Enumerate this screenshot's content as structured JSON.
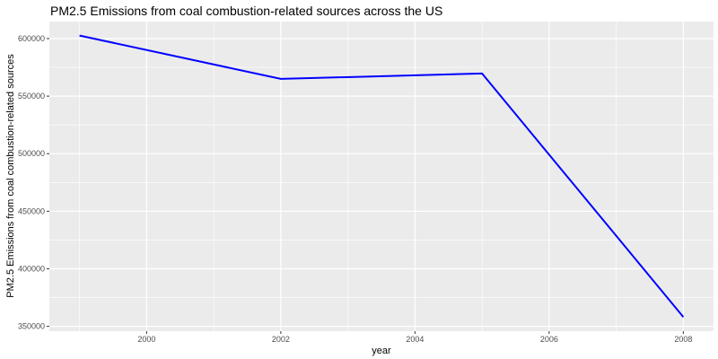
{
  "chart_data": {
    "type": "line",
    "title": "PM2.5 Emissions from coal combustion-related sources across the US",
    "xlabel": "year",
    "ylabel": "PM2.5 Emissions from coal combustion-related sources",
    "x": [
      1999,
      2002,
      2005,
      2008
    ],
    "series": [
      {
        "values": [
          602624,
          564940,
          569654,
          358084
        ]
      }
    ],
    "xticks": [
      2000,
      2002,
      2004,
      2006,
      2008
    ],
    "xtick_labels": [
      "2000",
      "2002",
      "2004",
      "2006",
      "2008"
    ],
    "yticks": [
      350000,
      400000,
      450000,
      500000,
      550000,
      600000
    ],
    "ytick_labels": [
      "350000",
      "400000",
      "450000",
      "500000",
      "550000",
      "600000"
    ],
    "xlim": [
      1998.55,
      2008.45
    ],
    "ylim": [
      345800,
      614800
    ],
    "grid": true,
    "line_color": "#0000ff",
    "panel_background": "#ebebeb",
    "grid_color": "#ffffff"
  }
}
